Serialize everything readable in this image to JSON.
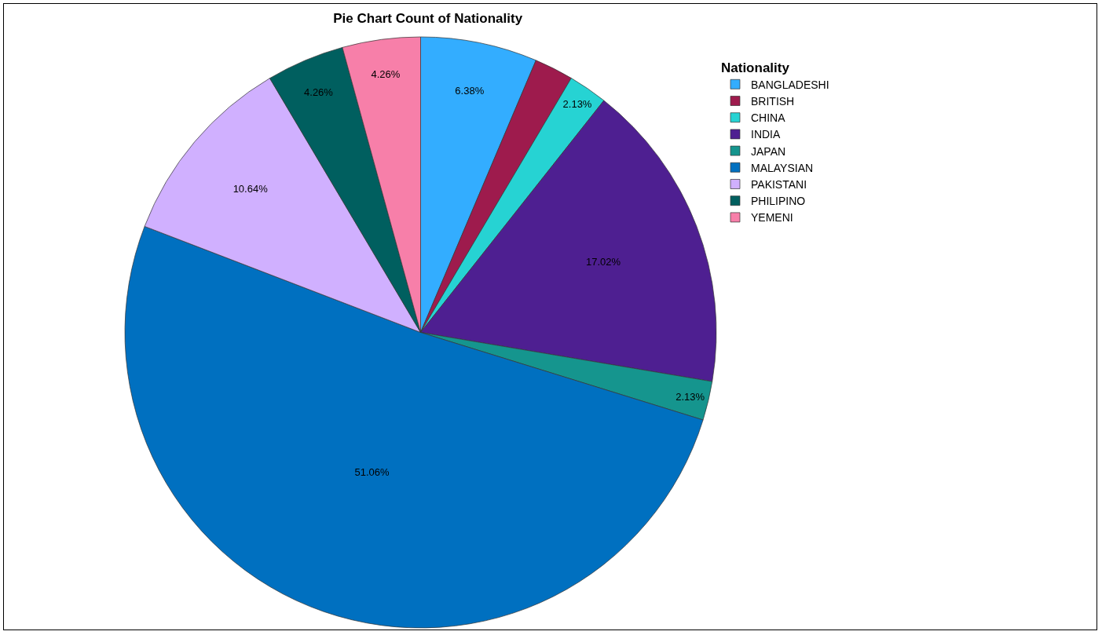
{
  "chart_data": {
    "type": "pie",
    "title": "Pie Chart Count of Nationality",
    "legend_title": "Nationality",
    "legend": "top right",
    "categories": [
      "BANGLADESHI",
      "BRITISH",
      "CHINA",
      "INDIA",
      "JAPAN",
      "MALAYSIAN",
      "PAKISTANI",
      "PHILIPINO",
      "YEMENI"
    ],
    "values": [
      6.38,
      2.13,
      2.13,
      17.02,
      2.13,
      51.06,
      10.64,
      4.26,
      4.26
    ],
    "value_labels": [
      "6.38%",
      null,
      "2.13%",
      "17.02%",
      "2.13%",
      "51.06%",
      "10.64%",
      "4.26%",
      "4.26%"
    ],
    "colors": [
      "#33adff",
      "#9e1b4d",
      "#26d3d3",
      "#4e1f91",
      "#15958e",
      "#0070c0",
      "#d0b0ff",
      "#005f5f",
      "#f77fa9"
    ]
  }
}
